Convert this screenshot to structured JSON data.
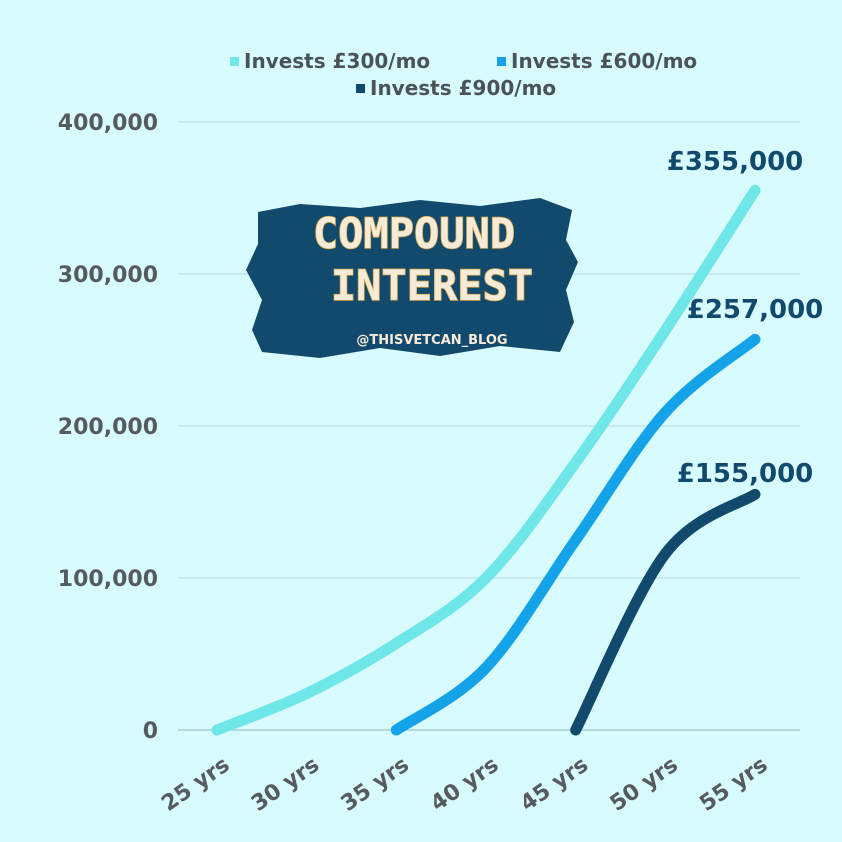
{
  "chart_data": {
    "type": "line",
    "title": "COMPOUND INTEREST",
    "subtitle": "@THISVETCAN_BLOG",
    "categories": [
      "25 yrs",
      "30 yrs",
      "35 yrs",
      "40 yrs",
      "45 yrs",
      "50 yrs",
      "55 yrs"
    ],
    "x": [
      25,
      30,
      35,
      40,
      45,
      50,
      55
    ],
    "ylim": [
      0,
      400000
    ],
    "yticks": [
      0,
      100000,
      200000,
      300000,
      400000
    ],
    "ytick_labels": [
      "0",
      "100,000",
      "200,000",
      "300,000",
      "400,000"
    ],
    "grid": true,
    "legend_placement": "top",
    "series": [
      {
        "name": "Invests £300/mo",
        "color": "#6fe6e8",
        "x": [
          25,
          30,
          35,
          40,
          45,
          50,
          55
        ],
        "values": [
          0,
          24000,
          57000,
          100000,
          176000,
          263000,
          355000
        ],
        "end_label": "£355,000"
      },
      {
        "name": "Invests £600/mo",
        "color": "#14a3e8",
        "x": [
          35,
          40,
          45,
          50,
          55
        ],
        "values": [
          0,
          41000,
          125000,
          209000,
          257000
        ],
        "end_label": "£257,000"
      },
      {
        "name": "Invests £900/mo",
        "color": "#124a6e",
        "x": [
          45,
          50,
          55
        ],
        "values": [
          0,
          116000,
          155000
        ],
        "end_label": "£155,000"
      }
    ]
  }
}
